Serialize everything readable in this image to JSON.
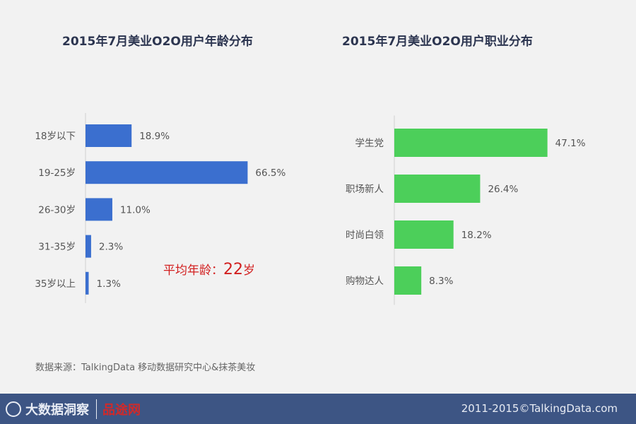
{
  "left_title": "2015年7月美业O2O用户年龄分布",
  "right_title": "2015年7月美业O2O用户职业分布",
  "avg_note": {
    "prefix": "平均年龄：",
    "value": "22",
    "suffix": "岁"
  },
  "source": "数据来源：TalkingData 移动数据研究中心&抹茶美妆",
  "footer": {
    "logo_text": "大数据洞察",
    "partner_logo": "品途网",
    "copyright": "2011-2015©TalkingData.com"
  },
  "colors": {
    "age_bar": "#3b6fcf",
    "occupation_bar": "#4ccf5a"
  },
  "chart_data": [
    {
      "type": "bar",
      "orientation": "horizontal",
      "title": "2015年7月美业O2O用户年龄分布",
      "categories": [
        "18岁以下",
        "19-25岁",
        "26-30岁",
        "31-35岁",
        "35岁以上"
      ],
      "values": [
        18.9,
        66.5,
        11.0,
        2.3,
        1.3
      ],
      "labels": [
        "18.9%",
        "66.5%",
        "11.0%",
        "2.3%",
        "1.3%"
      ],
      "unit": "%"
    },
    {
      "type": "bar",
      "orientation": "horizontal",
      "title": "2015年7月美业O2O用户职业分布",
      "categories": [
        "学生党",
        "职场新人",
        "时尚白领",
        "购物达人"
      ],
      "values": [
        47.1,
        26.4,
        18.2,
        8.3
      ],
      "labels": [
        "47.1%",
        "26.4%",
        "18.2%",
        "8.3%"
      ],
      "unit": "%"
    }
  ]
}
